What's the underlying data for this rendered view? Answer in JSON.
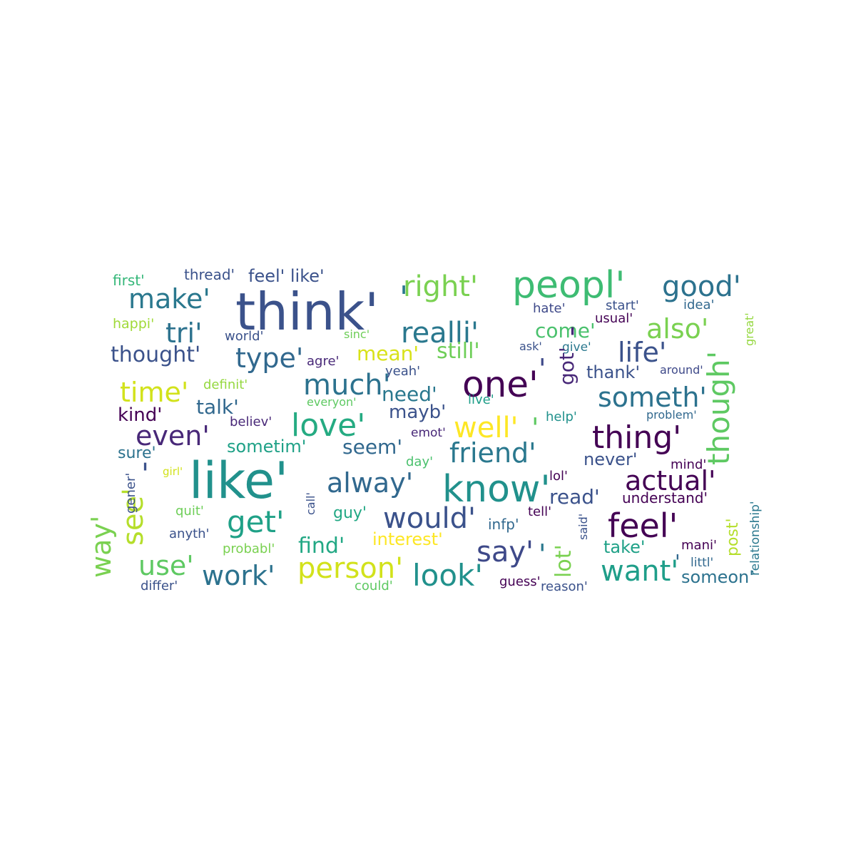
{
  "word_cloud": {
    "words": [
      {
        "text": "think'",
        "color": "#3b528b"
      },
      {
        "text": "like'",
        "color": "#21918c"
      },
      {
        "text": "peopl'",
        "color": "#3ebc73"
      },
      {
        "text": "right'",
        "color": "#7ad151"
      },
      {
        "text": "good'",
        "color": "#2c728e"
      },
      {
        "text": "make'",
        "color": "#2a788e"
      },
      {
        "text": "one'",
        "color": "#440154"
      },
      {
        "text": "realli'",
        "color": "#2a788e"
      },
      {
        "text": "also'",
        "color": "#7ad151"
      },
      {
        "text": "tri'",
        "color": "#2c728e"
      },
      {
        "text": "life'",
        "color": "#3b528b"
      },
      {
        "text": "type'",
        "color": "#31688e"
      },
      {
        "text": "thought'",
        "color": "#3b528b"
      },
      {
        "text": "time'",
        "color": "#d2e21b"
      },
      {
        "text": "much'",
        "color": "#2c728e"
      },
      {
        "text": "though'",
        "color": "#5ec962"
      },
      {
        "text": "someth'",
        "color": "#2c728e"
      },
      {
        "text": "thing'",
        "color": "#440154"
      },
      {
        "text": "love'",
        "color": "#25ab82"
      },
      {
        "text": "well'",
        "color": "#fde725"
      },
      {
        "text": "even'",
        "color": "#482878"
      },
      {
        "text": "friend'",
        "color": "#2a788e"
      },
      {
        "text": "know'",
        "color": "#21918c"
      },
      {
        "text": "alway'",
        "color": "#31688e"
      },
      {
        "text": "actual'",
        "color": "#440154"
      },
      {
        "text": "get'",
        "color": "#1fa187"
      },
      {
        "text": "see'",
        "color": "#b5de2b"
      },
      {
        "text": "way'",
        "color": "#7ad151"
      },
      {
        "text": "would'",
        "color": "#3b528b"
      },
      {
        "text": "feel'",
        "color": "#440154"
      },
      {
        "text": "say'",
        "color": "#3e4989"
      },
      {
        "text": "use'",
        "color": "#5ec962"
      },
      {
        "text": "work'",
        "color": "#2c728e"
      },
      {
        "text": "person'",
        "color": "#d2e21b"
      },
      {
        "text": "look'",
        "color": "#21918c"
      },
      {
        "text": "want'",
        "color": "#1f9e89"
      },
      {
        "text": "feel' like'",
        "color": "#3b528b"
      },
      {
        "text": "thread'",
        "color": "#3b528b"
      },
      {
        "text": "first'",
        "color": "#35b779"
      },
      {
        "text": "happi'",
        "color": "#a0da39"
      },
      {
        "text": "world'",
        "color": "#3b528b"
      },
      {
        "text": "sinc'",
        "color": "#6ece58"
      },
      {
        "text": "agre'",
        "color": "#482878"
      },
      {
        "text": "mean'",
        "color": "#d8e219"
      },
      {
        "text": "still'",
        "color": "#6ece58"
      },
      {
        "text": "come'",
        "color": "#4ac16d"
      },
      {
        "text": "ask'",
        "color": "#3b528b"
      },
      {
        "text": "give'",
        "color": "#2a788e"
      },
      {
        "text": "hate'",
        "color": "#3e4989"
      },
      {
        "text": "start'",
        "color": "#3b528b"
      },
      {
        "text": "idea'",
        "color": "#31688e"
      },
      {
        "text": "usual'",
        "color": "#440154"
      },
      {
        "text": "great'",
        "color": "#95d840"
      },
      {
        "text": "got'",
        "color": "#482878"
      },
      {
        "text": "thank'",
        "color": "#3b528b"
      },
      {
        "text": "around'",
        "color": "#3e4989"
      },
      {
        "text": "yeah'",
        "color": "#3b528b"
      },
      {
        "text": "definit'",
        "color": "#95d840"
      },
      {
        "text": "need'",
        "color": "#2a788e"
      },
      {
        "text": "kind'",
        "color": "#440154"
      },
      {
        "text": "talk'",
        "color": "#31688e"
      },
      {
        "text": "everyon'",
        "color": "#5ec962"
      },
      {
        "text": "live'",
        "color": "#1f9e89"
      },
      {
        "text": "mayb'",
        "color": "#3b528b"
      },
      {
        "text": "help'",
        "color": "#21918c"
      },
      {
        "text": "problem'",
        "color": "#31688e"
      },
      {
        "text": "believ'",
        "color": "#482878"
      },
      {
        "text": "emot'",
        "color": "#482878"
      },
      {
        "text": "sure'",
        "color": "#2c728e"
      },
      {
        "text": "sometim'",
        "color": "#1fa187"
      },
      {
        "text": "seem'",
        "color": "#31688e"
      },
      {
        "text": "never'",
        "color": "#3b528b"
      },
      {
        "text": "mind'",
        "color": "#440154"
      },
      {
        "text": "day'",
        "color": "#4ac16d"
      },
      {
        "text": "girl'",
        "color": "#d2e21b"
      },
      {
        "text": "gener'",
        "color": "#3b528b"
      },
      {
        "text": "lol'",
        "color": "#440154"
      },
      {
        "text": "read'",
        "color": "#3b528b"
      },
      {
        "text": "understand'",
        "color": "#440154"
      },
      {
        "text": "relationship'",
        "color": "#2a788e"
      },
      {
        "text": "call'",
        "color": "#3b528b"
      },
      {
        "text": "quit'",
        "color": "#6ece58"
      },
      {
        "text": "guy'",
        "color": "#22a884"
      },
      {
        "text": "tell'",
        "color": "#440154"
      },
      {
        "text": "post'",
        "color": "#b5de2b"
      },
      {
        "text": "anyth'",
        "color": "#3b528b"
      },
      {
        "text": "infp'",
        "color": "#31688e"
      },
      {
        "text": "said'",
        "color": "#3b528b"
      },
      {
        "text": "interest'",
        "color": "#fde725"
      },
      {
        "text": "find'",
        "color": "#22a884"
      },
      {
        "text": "probabl'",
        "color": "#7ad151"
      },
      {
        "text": "take'",
        "color": "#1fa187"
      },
      {
        "text": "mani'",
        "color": "#440154"
      },
      {
        "text": "lot'",
        "color": "#7ad151"
      },
      {
        "text": "littl'",
        "color": "#31688e"
      },
      {
        "text": "someon'",
        "color": "#2c728e"
      },
      {
        "text": "differ'",
        "color": "#3b528b"
      },
      {
        "text": "could'",
        "color": "#5ec962"
      },
      {
        "text": "guess'",
        "color": "#440154"
      },
      {
        "text": "reason'",
        "color": "#3b528b"
      },
      {
        "text": "'",
        "color": "#2a788e"
      },
      {
        "text": "'",
        "color": "#3e4989"
      },
      {
        "text": "'",
        "color": "#2a788e"
      },
      {
        "text": "'",
        "color": "#482878"
      },
      {
        "text": "'",
        "color": "#5ec962"
      },
      {
        "text": "'",
        "color": "#31688e"
      },
      {
        "text": "'",
        "color": "#3b528b"
      }
    ]
  }
}
